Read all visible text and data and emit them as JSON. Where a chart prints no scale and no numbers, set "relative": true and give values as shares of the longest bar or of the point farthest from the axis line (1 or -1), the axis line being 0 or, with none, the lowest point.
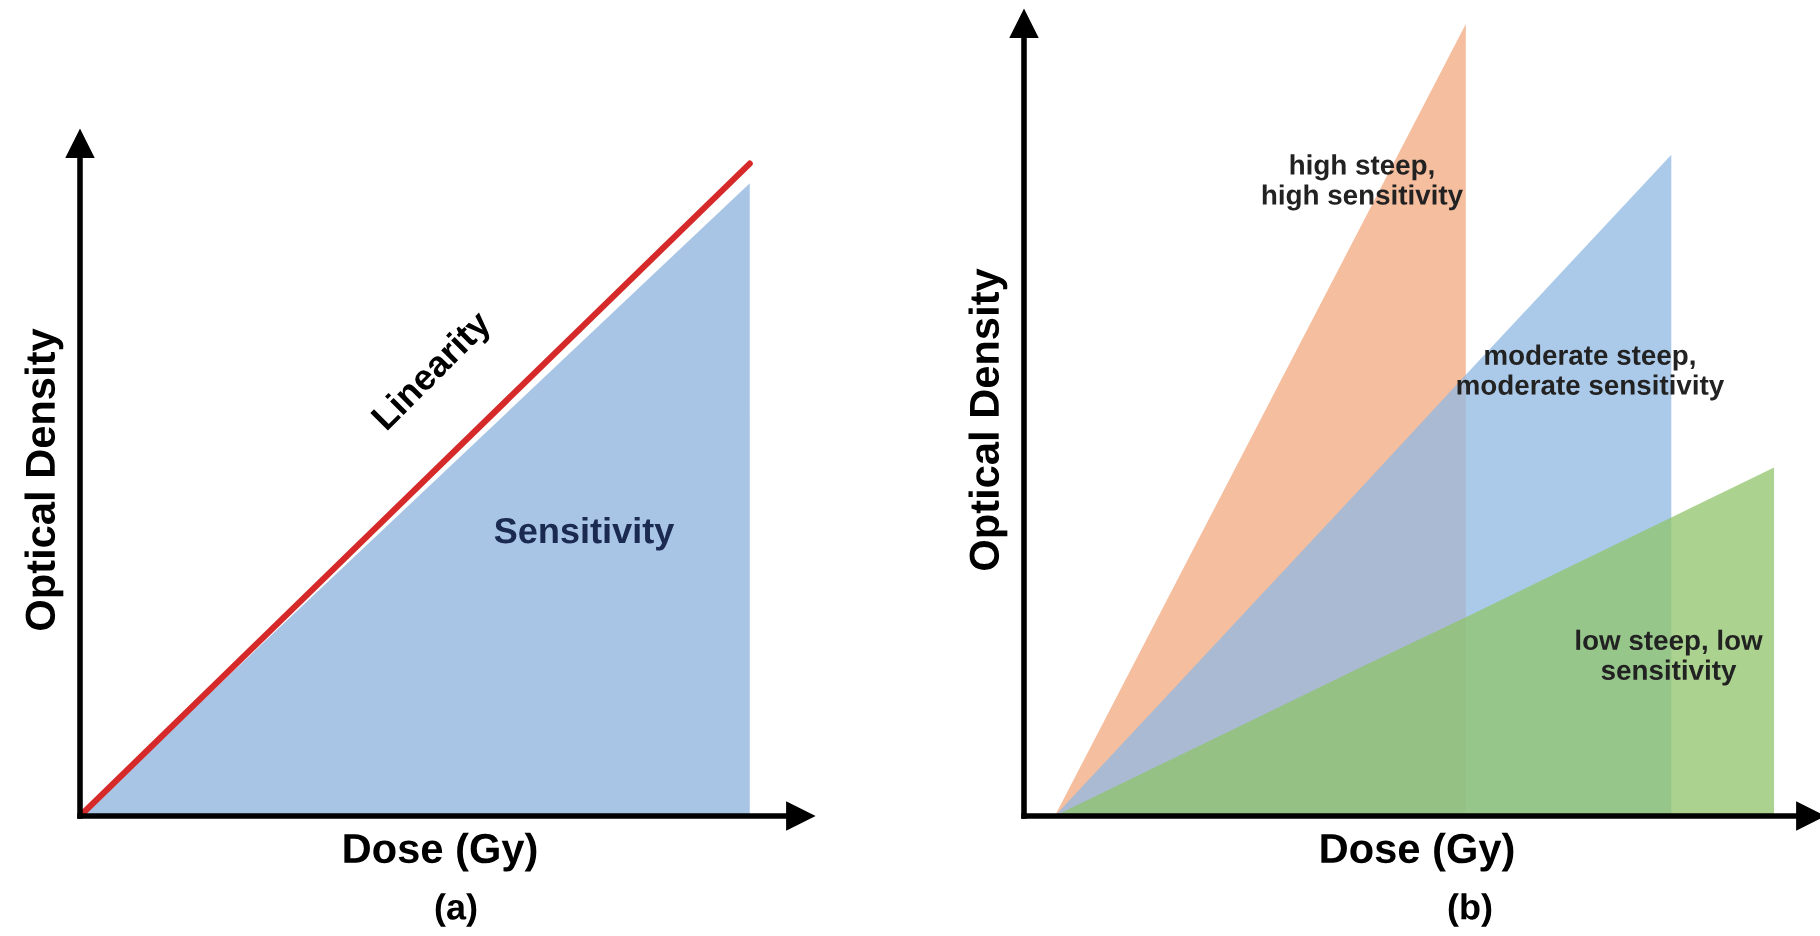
{
  "chart_data": [
    {
      "type": "area",
      "relative": true,
      "xlabel": "Dose (Gy)",
      "ylabel": "Optical Density",
      "categories": [
        null,
        null
      ],
      "series": [
        {
          "type": "area",
          "color": "#a9c5e6",
          "values": [
            0,
            0.97
          ]
        },
        {
          "type": "line",
          "color": "#d62a2a",
          "values": [
            0,
            1
          ]
        }
      ],
      "annotations": [
        "Linearity",
        "Sensitivity",
        "(a)"
      ],
      "legend": false,
      "grid": false,
      "tick_labels": false
    },
    {
      "type": "area",
      "relative": true,
      "xlabel": "Dose (Gy)",
      "ylabel": "Optical Density",
      "categories": [
        null,
        null,
        null,
        null,
        null,
        null,
        null,
        null
      ],
      "series": [
        {
          "type": "area",
          "color": "#f2a87e",
          "values": [
            0,
            0.25,
            0.5,
            0.75,
            1,
            null,
            null,
            null
          ]
        },
        {
          "type": "area",
          "color": "#8fb8e3",
          "values": [
            0,
            0.139,
            0.278,
            0.417,
            0.557,
            0.696,
            0.835,
            null
          ]
        },
        {
          "type": "area",
          "color": "#8fc46a",
          "values": [
            0,
            0.063,
            0.126,
            0.189,
            0.251,
            0.314,
            0.377,
            0.44
          ]
        }
      ],
      "annotations": [
        "high steep,\nhigh sensitivity",
        "moderate steep,\nmoderate sensitivity",
        "low steep, low\nsensitivity",
        "(b)"
      ],
      "legend": false,
      "grid": false,
      "tick_labels": false
    }
  ]
}
